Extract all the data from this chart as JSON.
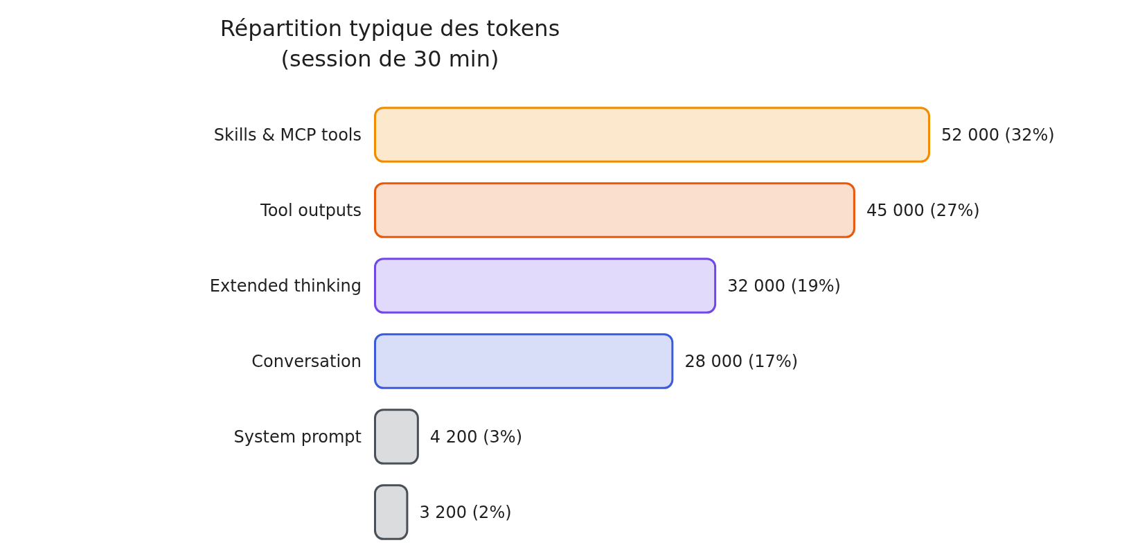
{
  "chart_data": {
    "type": "bar",
    "orientation": "horizontal",
    "title": "Répartition typique des tokens",
    "subtitle": "(session de 30 min)",
    "categories": [
      "Skills & MCP tools",
      "Tool outputs",
      "Extended thinking",
      "Conversation",
      "System prompt",
      null
    ],
    "values": [
      52000,
      45000,
      32000,
      28000,
      4200,
      3200
    ],
    "colors": [
      "#f08c00",
      "#e8590c",
      "#7048e8",
      "#3b5bdb",
      "#495057",
      "#495057"
    ],
    "value_labels": [
      "52 000 (32%)",
      "45 000 (27%)",
      "32 000 (19%)",
      "28 000 (17%)",
      "4 200 (3%)",
      "3 200 (2%)"
    ]
  }
}
